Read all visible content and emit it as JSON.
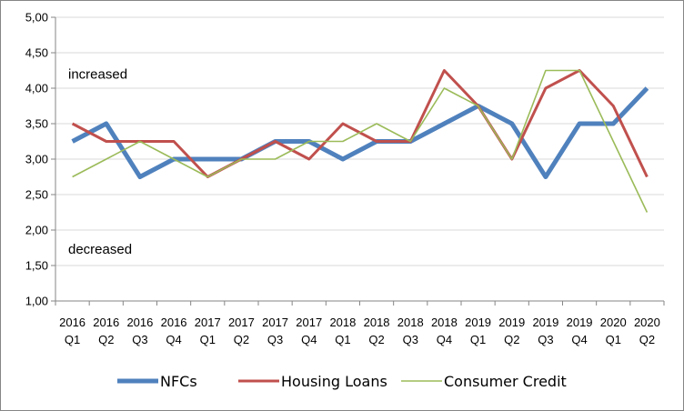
{
  "chart_data": {
    "type": "line",
    "title": "",
    "xlabel": "",
    "ylabel": "",
    "ylim": [
      1.0,
      5.0
    ],
    "ytick_step": 0.5,
    "yticks": [
      "1,00",
      "1,50",
      "2,00",
      "2,50",
      "3,00",
      "3,50",
      "4,00",
      "4,50",
      "5,00"
    ],
    "grid": "horizontal",
    "legend_position": "bottom",
    "categories": [
      {
        "year": "2016",
        "quarter": "Q1"
      },
      {
        "year": "2016",
        "quarter": "Q2"
      },
      {
        "year": "2016",
        "quarter": "Q3"
      },
      {
        "year": "2016",
        "quarter": "Q4"
      },
      {
        "year": "2017",
        "quarter": "Q1"
      },
      {
        "year": "2017",
        "quarter": "Q2"
      },
      {
        "year": "2017",
        "quarter": "Q3"
      },
      {
        "year": "2017",
        "quarter": "Q4"
      },
      {
        "year": "2018",
        "quarter": "Q1"
      },
      {
        "year": "2018",
        "quarter": "Q2"
      },
      {
        "year": "2018",
        "quarter": "Q3"
      },
      {
        "year": "2018",
        "quarter": "Q4"
      },
      {
        "year": "2019",
        "quarter": "Q1"
      },
      {
        "year": "2019",
        "quarter": "Q2"
      },
      {
        "year": "2019",
        "quarter": "Q3"
      },
      {
        "year": "2019",
        "quarter": "Q4"
      },
      {
        "year": "2020",
        "quarter": "Q1"
      },
      {
        "year": "2020",
        "quarter": "Q2"
      }
    ],
    "annotations": [
      {
        "text": "increased",
        "value": 4.2
      },
      {
        "text": "decreased",
        "value": 1.73
      }
    ],
    "series": [
      {
        "name": "NFCs",
        "color": "#4f81bd",
        "values": [
          3.25,
          3.5,
          2.75,
          3.0,
          3.0,
          3.0,
          3.25,
          3.25,
          3.0,
          3.25,
          3.25,
          3.5,
          3.75,
          3.5,
          2.75,
          3.5,
          3.5,
          4.0
        ]
      },
      {
        "name": "Housing Loans",
        "color": "#c0504d",
        "values": [
          3.5,
          3.25,
          3.25,
          3.25,
          2.75,
          3.0,
          3.25,
          3.0,
          3.5,
          3.25,
          3.25,
          4.25,
          3.75,
          3.0,
          4.0,
          4.25,
          3.75,
          2.75
        ]
      },
      {
        "name": "Consumer Credit",
        "color": "#9bbb59",
        "values": [
          2.75,
          3.0,
          3.25,
          3.0,
          2.75,
          3.0,
          3.0,
          3.25,
          3.25,
          3.5,
          3.25,
          4.0,
          3.75,
          3.0,
          4.25,
          4.25,
          3.25,
          2.25
        ]
      }
    ]
  }
}
